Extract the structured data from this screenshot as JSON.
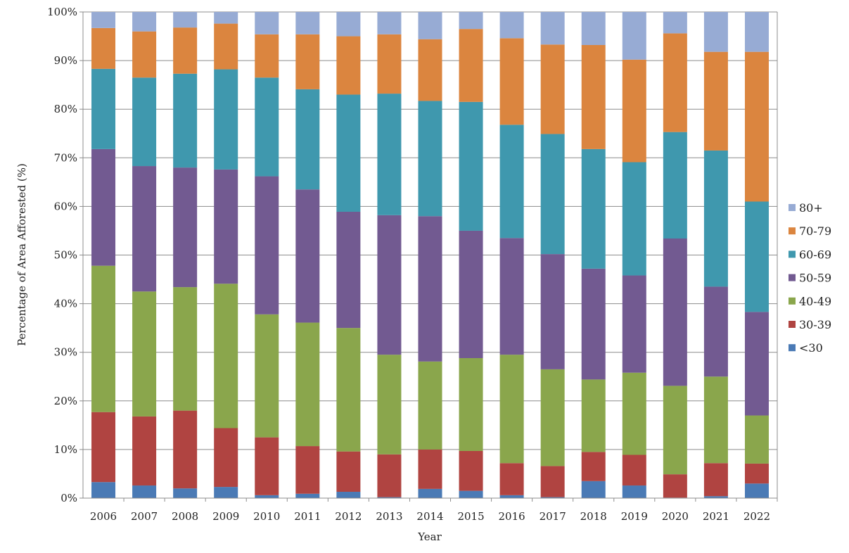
{
  "chart_data": {
    "type": "bar",
    "stacked": true,
    "title": "",
    "xlabel": "Year",
    "ylabel": "Percentage of Area Afforested (%)",
    "ylim": [
      0,
      100
    ],
    "yticks": [
      "0%",
      "10%",
      "20%",
      "30%",
      "40%",
      "50%",
      "60%",
      "70%",
      "80%",
      "90%",
      "100%"
    ],
    "grid": true,
    "legend_position": "right",
    "categories": [
      "2006",
      "2007",
      "2008",
      "2009",
      "2010",
      "2011",
      "2012",
      "2013",
      "2014",
      "2015",
      "2016",
      "2017",
      "2018",
      "2019",
      "2020",
      "2021",
      "2022"
    ],
    "series": [
      {
        "name": "<30",
        "color": "#4a7ab5",
        "values": [
          3.3,
          2.6,
          2.0,
          2.3,
          0.6,
          0.9,
          1.3,
          0.2,
          1.9,
          1.5,
          0.6,
          0.2,
          3.5,
          2.6,
          0.1,
          0.4,
          3.0
        ]
      },
      {
        "name": "30-39",
        "color": "#b04441",
        "values": [
          14.4,
          14.2,
          16.0,
          12.1,
          11.9,
          9.8,
          8.3,
          8.8,
          8.1,
          8.2,
          6.6,
          6.4,
          6.0,
          6.3,
          4.8,
          6.8,
          4.1
        ]
      },
      {
        "name": "40-49",
        "color": "#8aa64c",
        "values": [
          30.1,
          25.7,
          25.4,
          29.7,
          25.3,
          25.4,
          25.4,
          20.5,
          18.1,
          19.1,
          22.3,
          19.9,
          14.9,
          16.9,
          18.2,
          17.8,
          9.9
        ]
      },
      {
        "name": "50-59",
        "color": "#725a91",
        "values": [
          24.0,
          25.8,
          24.6,
          23.5,
          28.4,
          27.4,
          23.9,
          28.7,
          29.9,
          26.2,
          24.0,
          23.7,
          22.8,
          20.0,
          30.3,
          18.5,
          21.3
        ]
      },
      {
        "name": "60-69",
        "color": "#3f98ae",
        "values": [
          16.5,
          18.2,
          19.3,
          20.6,
          20.3,
          20.6,
          24.1,
          25.0,
          23.7,
          26.5,
          23.3,
          24.7,
          24.6,
          23.3,
          21.9,
          28.0,
          22.7
        ]
      },
      {
        "name": "70-79",
        "color": "#db853f",
        "values": [
          8.4,
          9.5,
          9.5,
          9.4,
          8.9,
          11.3,
          12.0,
          12.2,
          12.7,
          15.0,
          17.8,
          18.4,
          21.4,
          21.1,
          20.3,
          20.3,
          30.8
        ]
      },
      {
        "name": "80+",
        "color": "#97abd4",
        "values": [
          3.3,
          4.0,
          3.2,
          2.4,
          4.6,
          4.6,
          5.0,
          4.6,
          5.6,
          3.5,
          5.4,
          6.7,
          6.8,
          9.8,
          4.4,
          8.2,
          8.2
        ]
      }
    ]
  }
}
